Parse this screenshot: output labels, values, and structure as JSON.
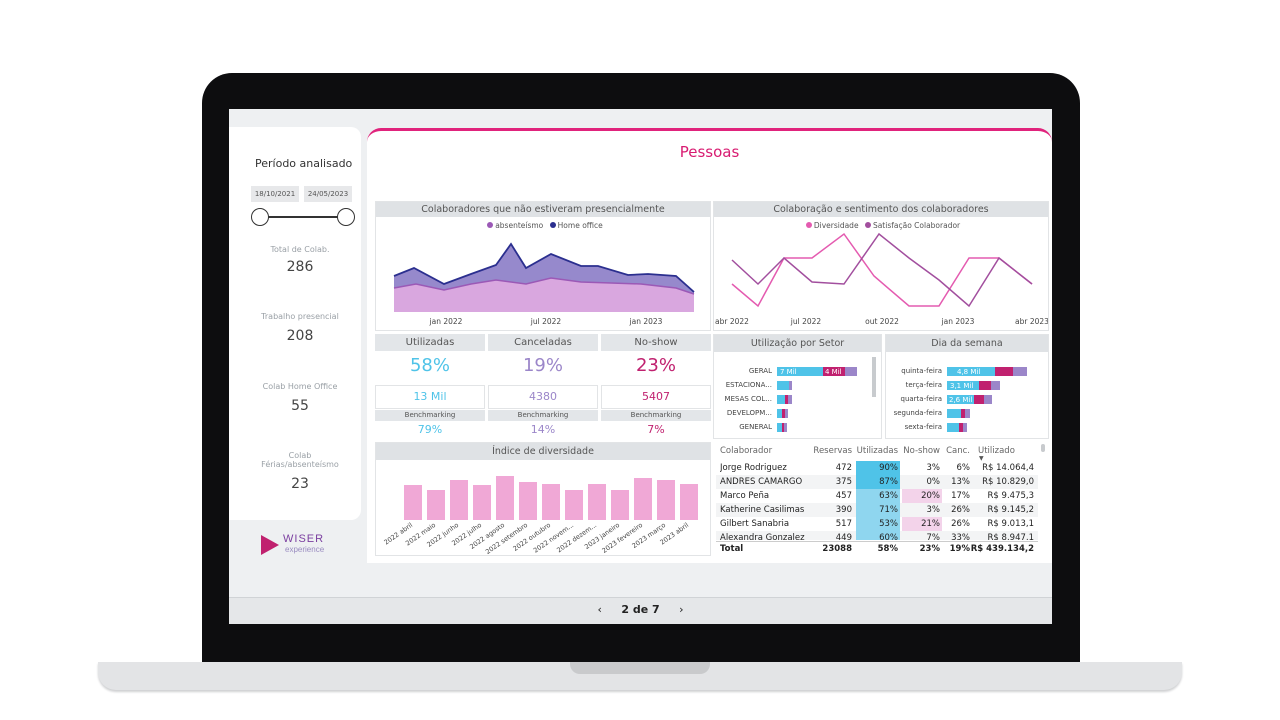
{
  "filter": {
    "title": "Período analisado",
    "date_start": "18/10/2021",
    "date_end": "24/05/2023",
    "kpis": [
      {
        "label": "Total de Colab.",
        "value": "286"
      },
      {
        "label": "Trabalho presencial",
        "value": "208"
      },
      {
        "label": "Colab Home Office",
        "value": "55"
      },
      {
        "label": "Colab Férias/absenteísmo",
        "value": "23"
      }
    ]
  },
  "brand": {
    "word": "WISER",
    "sub": "experience"
  },
  "page": {
    "title": "Pessoas"
  },
  "colors": {
    "accent": "#e0237c",
    "purple": "#9b59b6",
    "navy": "#2b2f8f",
    "lilac": "#c79ad6",
    "pink": "#e45bb0",
    "cyan": "#4fc3e8"
  },
  "chart1": {
    "title": "Colaboradores que não estiveram presencialmente",
    "legend": [
      "absenteísmo",
      "Home office"
    ],
    "ticks": [
      "jan 2022",
      "jul 2022",
      "jan 2023"
    ]
  },
  "chart2": {
    "title": "Colaboração e sentimento dos colaboradores",
    "legend": [
      "Diversidade",
      "Satisfação Colaborador"
    ],
    "ticks": [
      "abr 2022",
      "jul 2022",
      "out 2022",
      "jan 2023",
      "abr 2023"
    ]
  },
  "tiles": [
    {
      "label": "Utilizadas",
      "big": "58%",
      "mid": "13 Mil",
      "bench_label": "Benchmarking",
      "bench": "79%",
      "color": "#4fc3e8"
    },
    {
      "label": "Canceladas",
      "big": "19%",
      "mid": "4380",
      "bench_label": "Benchmarking",
      "bench": "14%",
      "color": "#9b86c9"
    },
    {
      "label": "No-show",
      "big": "23%",
      "mid": "5407",
      "bench_label": "Benchmarking",
      "bench": "7%",
      "color": "#c0216f"
    }
  ],
  "sector": {
    "title": "Utilização por Setor",
    "rows": [
      {
        "label": "GERAL",
        "seg1": "7 Mil",
        "seg2": "4 Mil"
      },
      {
        "label": "ESTACIONA...",
        "seg1": "",
        "seg2": ""
      },
      {
        "label": "MESAS COL...",
        "seg1": "",
        "seg2": ""
      },
      {
        "label": "DEVELOPM...",
        "seg1": "",
        "seg2": ""
      },
      {
        "label": "GENERAL",
        "seg1": "",
        "seg2": ""
      }
    ]
  },
  "weekday": {
    "title": "Dia da semana",
    "rows": [
      {
        "label": "quinta-feira",
        "seg1": "4,8 Mil"
      },
      {
        "label": "terça-feira",
        "seg1": "3,1 Mil"
      },
      {
        "label": "quarta-feira",
        "seg1": "2,6 Mil"
      },
      {
        "label": "segunda-feira",
        "seg1": ""
      },
      {
        "label": "sexta-feira",
        "seg1": ""
      }
    ]
  },
  "diversity": {
    "title": "Índice de diversidade",
    "months": [
      "2022 abril",
      "2022 maio",
      "2022 junho",
      "2022 julho",
      "2022 agosto",
      "2022 setembro",
      "2022 outubro",
      "2022 novem...",
      "2022 dezem...",
      "2023 janeiro",
      "2023 fevereiro",
      "2023 março",
      "2023 abril"
    ],
    "values": [
      35,
      30,
      40,
      35,
      44,
      38,
      36,
      30,
      36,
      30,
      42,
      40,
      36
    ]
  },
  "table": {
    "headers": [
      "Colaborador",
      "Reservas",
      "Utilizadas",
      "No-show",
      "Canc.",
      "Utilizado"
    ],
    "rows": [
      [
        "Jorge Rodriguez",
        "472",
        "90%",
        "3%",
        "6%",
        "R$ 14.064,4"
      ],
      [
        "ANDRES CAMARGO",
        "375",
        "87%",
        "0%",
        "13%",
        "R$ 10.829,0"
      ],
      [
        "Marco Peña",
        "457",
        "63%",
        "20%",
        "17%",
        "R$ 9.475,3"
      ],
      [
        "Katherine Casilimas",
        "390",
        "71%",
        "3%",
        "26%",
        "R$ 9.145,2"
      ],
      [
        "Gilbert Sanabria",
        "517",
        "53%",
        "21%",
        "26%",
        "R$ 9.013,1"
      ],
      [
        "Alexandra Gonzalez",
        "449",
        "60%",
        "7%",
        "33%",
        "R$ 8.947,1"
      ]
    ],
    "total": [
      "Total",
      "23088",
      "58%",
      "23%",
      "19%",
      "R$ 439.134,2"
    ]
  },
  "pager": {
    "prev": "‹",
    "label": "2 de 7",
    "next": "›"
  }
}
